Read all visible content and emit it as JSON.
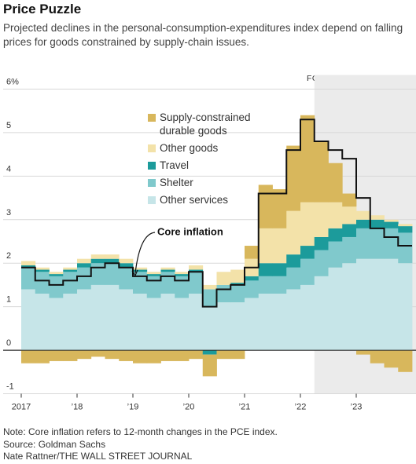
{
  "chart_data": {
    "type": "stacked-step",
    "title": "Price Puzzle",
    "subtitle": "Projected declines in the personal-consumption-expenditures index depend on falling prices for goods constrained by supply-chain issues.",
    "forecast_label": "FORECAST",
    "forecast_start": 2022.25,
    "annotation": "Core inflation",
    "notes": [
      "Note: Core inflation refers to 12-month changes in the PCE index.",
      "Source: Goldman Sachs",
      "Nate Rattner/THE WALL STREET JOURNAL"
    ],
    "x": [
      2017,
      2017.25,
      2017.5,
      2017.75,
      2018,
      2018.25,
      2018.5,
      2018.75,
      2019,
      2019.25,
      2019.5,
      2019.75,
      2020,
      2020.25,
      2020.5,
      2020.75,
      2021,
      2021.25,
      2021.5,
      2021.75,
      2022,
      2022.25,
      2022.5,
      2022.75,
      2023,
      2023.25,
      2023.5,
      2023.75
    ],
    "xlim": [
      2017,
      2024
    ],
    "xticks": [
      {
        "value": 2017,
        "label": "2017"
      },
      {
        "value": 2018,
        "label": "’18"
      },
      {
        "value": 2019,
        "label": "’19"
      },
      {
        "value": 2020,
        "label": "’20"
      },
      {
        "value": 2021,
        "label": "’21"
      },
      {
        "value": 2022,
        "label": "’22"
      },
      {
        "value": 2023,
        "label": "’23"
      }
    ],
    "ylim": [
      -1,
      6
    ],
    "yticks": [
      -1,
      0,
      1,
      2,
      3,
      4,
      5,
      {
        "value": 6,
        "label": "6%"
      }
    ],
    "series": [
      {
        "name": "Other services",
        "color": "#c6e5e8",
        "values": [
          1.4,
          1.3,
          1.2,
          1.3,
          1.4,
          1.5,
          1.5,
          1.4,
          1.3,
          1.2,
          1.3,
          1.2,
          1.3,
          1.0,
          1.1,
          1.1,
          1.2,
          1.3,
          1.3,
          1.4,
          1.5,
          1.7,
          1.9,
          2.0,
          2.1,
          2.1,
          2.1,
          2.0
        ]
      },
      {
        "name": "Shelter",
        "color": "#80c9cc",
        "values": [
          0.5,
          0.5,
          0.5,
          0.5,
          0.5,
          0.5,
          0.5,
          0.5,
          0.5,
          0.5,
          0.5,
          0.5,
          0.5,
          0.4,
          0.4,
          0.4,
          0.4,
          0.4,
          0.4,
          0.5,
          0.6,
          0.6,
          0.6,
          0.6,
          0.7,
          0.7,
          0.7,
          0.7
        ]
      },
      {
        "name": "Travel",
        "color": "#1c9b9b",
        "values": [
          0.05,
          0.05,
          0.05,
          0.05,
          0.1,
          0.1,
          0.1,
          0.1,
          0.05,
          0.05,
          0.05,
          0.05,
          0.05,
          -0.1,
          0.0,
          0.05,
          0.1,
          0.3,
          0.3,
          0.3,
          0.3,
          0.3,
          0.3,
          0.3,
          0.2,
          0.2,
          0.15,
          0.15
        ]
      },
      {
        "name": "Other goods",
        "color": "#f3e2a9",
        "values": [
          0.1,
          0.05,
          0.05,
          0.05,
          0.1,
          0.1,
          0.1,
          0.1,
          0.05,
          0.05,
          0.05,
          0.05,
          0.1,
          0.1,
          0.3,
          0.3,
          0.4,
          0.8,
          0.8,
          1.0,
          1.0,
          0.8,
          0.6,
          0.4,
          0.2,
          0.1,
          0.05,
          0.05
        ]
      },
      {
        "name": "Supply-constrained durable goods",
        "color": "#d8b75c",
        "values": [
          -0.3,
          -0.3,
          -0.25,
          -0.25,
          -0.2,
          -0.15,
          -0.2,
          -0.25,
          -0.3,
          -0.3,
          -0.25,
          -0.25,
          -0.2,
          -0.5,
          -0.2,
          -0.2,
          0.3,
          1.0,
          0.9,
          1.5,
          2.0,
          1.4,
          0.9,
          0.3,
          -0.1,
          -0.3,
          -0.4,
          -0.5
        ]
      }
    ],
    "line": {
      "name": "Core inflation",
      "color": "#111111",
      "values": [
        1.9,
        1.6,
        1.5,
        1.6,
        1.7,
        1.9,
        2.0,
        1.9,
        1.7,
        1.6,
        1.7,
        1.6,
        1.8,
        1.0,
        1.4,
        1.5,
        1.9,
        3.6,
        3.6,
        4.6,
        5.3,
        4.8,
        4.6,
        4.4,
        3.5,
        2.8,
        2.6,
        2.4
      ]
    }
  }
}
